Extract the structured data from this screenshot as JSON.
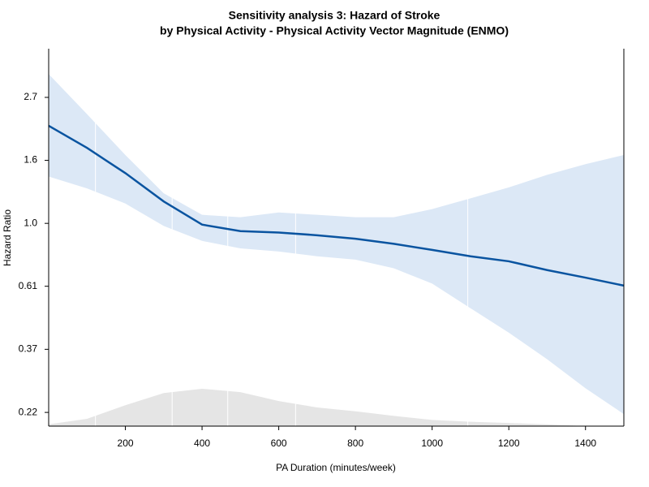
{
  "chart_data": {
    "type": "line",
    "title": "Sensitivity analysis 3: Hazard of Stroke",
    "subtitle": "by Physical Activity - Physical Activity Vector Magnitude (ENMO)",
    "x_label": "PA Duration (minutes/week)",
    "y_label": "Hazard Ratio",
    "x": [
      0,
      100,
      200,
      300,
      400,
      500,
      600,
      700,
      800,
      900,
      1000,
      1100,
      1200,
      1300,
      1400,
      1500
    ],
    "values": [
      2.17,
      1.82,
      1.49,
      1.19,
      0.99,
      0.94,
      0.93,
      0.91,
      0.885,
      0.85,
      0.81,
      0.77,
      0.74,
      0.69,
      0.65,
      0.61
    ],
    "upper": [
      3.27,
      2.38,
      1.72,
      1.27,
      1.07,
      1.05,
      1.09,
      1.07,
      1.05,
      1.05,
      1.12,
      1.22,
      1.33,
      1.47,
      1.6,
      1.72
    ],
    "lower": [
      1.45,
      1.32,
      1.17,
      0.98,
      0.87,
      0.82,
      0.8,
      0.77,
      0.75,
      0.7,
      0.62,
      0.51,
      0.42,
      0.34,
      0.27,
      0.22
    ],
    "density": [
      0.203,
      0.212,
      0.236,
      0.26,
      0.269,
      0.262,
      0.244,
      0.232,
      0.225,
      0.217,
      0.21,
      0.207,
      0.205,
      0.203,
      0.2,
      0.2
    ],
    "knots": [
      122,
      322,
      467,
      644,
      1093
    ],
    "color": "#0a54a0",
    "band_color": "#dce8f6",
    "density_color": "#e5e5e5",
    "log_y": true,
    "xlim": [
      0,
      1500
    ],
    "ylim": [
      0.2,
      4
    ],
    "xticks": [
      200,
      400,
      600,
      800,
      1000,
      1200,
      1400
    ],
    "yticks": [
      {
        "value": 0.223,
        "label": "0.22"
      },
      {
        "value": 0.368,
        "label": "0.37"
      },
      {
        "value": 0.607,
        "label": "0.61"
      },
      {
        "value": 1,
        "label": "1.0"
      },
      {
        "value": 1.649,
        "label": "1.6"
      },
      {
        "value": 2.718,
        "label": "2.7"
      }
    ]
  }
}
